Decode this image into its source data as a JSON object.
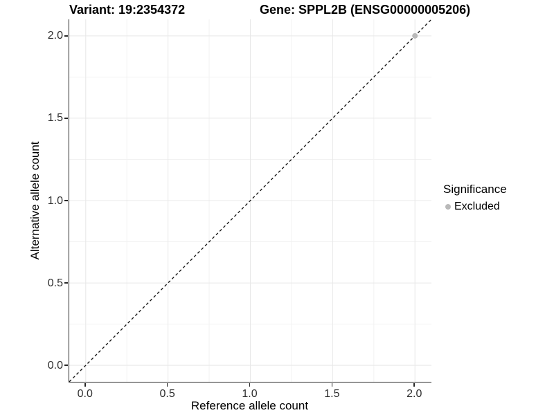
{
  "chart_data": {
    "type": "scatter",
    "titles": {
      "left": "Variant: 19:2354372",
      "right": "Gene: SPPL2B (ENSG00000005206)"
    },
    "xlabel": "Reference allele count",
    "ylabel": "Alternative allele count",
    "xlim": [
      -0.1,
      2.1
    ],
    "ylim": [
      -0.1,
      2.1
    ],
    "x_tick_values": [
      0,
      0.5,
      1,
      1.5,
      2
    ],
    "x_tick_labels": [
      "0.0",
      "0.5",
      "1.0",
      "1.5",
      "2.0"
    ],
    "y_tick_values": [
      0,
      0.5,
      1,
      1.5,
      2
    ],
    "y_tick_labels": [
      "0.0",
      "0.5",
      "1.0",
      "1.5",
      "2.0"
    ],
    "minor_tick_values": [
      0.25,
      0.75,
      1.25,
      1.75
    ],
    "grid": {
      "major_color": "#e8e8e8",
      "minor_color": "#f2f2f2",
      "visible": true
    },
    "axis": {
      "line_color": "#262626",
      "tick_color": "#262626",
      "tick_length": 5
    },
    "reference_line": {
      "slope": 1,
      "intercept": 0,
      "style": "dashed",
      "color": "#1a1a1a",
      "dash": "4 3.5",
      "width": 1.4
    },
    "series": [
      {
        "name": "Excluded",
        "color": "#b9b9b9",
        "marker": "circle",
        "radius": 4,
        "points": [
          {
            "x": 2,
            "y": 2
          }
        ]
      }
    ],
    "legend": {
      "title": "Significance",
      "position": "right",
      "entries": [
        {
          "label": "Excluded",
          "color": "#b9b9b9"
        }
      ]
    }
  }
}
